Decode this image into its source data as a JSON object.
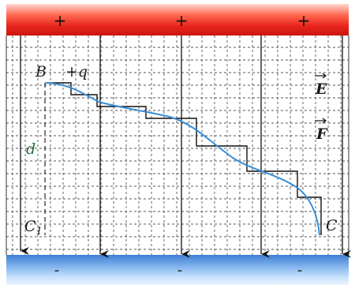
{
  "plates": {
    "top": {
      "signs": [
        "+",
        "+",
        "+"
      ],
      "color": "#e8322a"
    },
    "bottom": {
      "signs": [
        "-",
        "-",
        "-"
      ],
      "color": "#2f6fc4"
    }
  },
  "labels": {
    "start_point": "B",
    "charge": "+q",
    "distance": "d",
    "projection": "C",
    "projection_subscript": "1",
    "end_point": "C",
    "field_vector": "E",
    "force_vector": "F"
  },
  "colors": {
    "curve": "#3a8fd6",
    "staircase": "#111111",
    "field_lines": "#111111",
    "grid": "#555555"
  }
}
